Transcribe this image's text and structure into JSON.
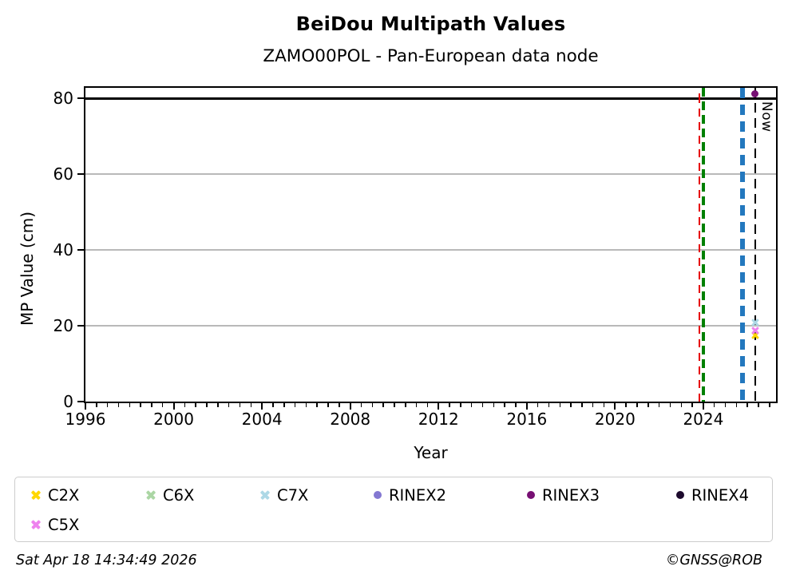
{
  "header": {
    "title": "BeiDou Multipath Values",
    "subtitle": "ZAMO00POL - Pan-European data node"
  },
  "footer": {
    "timestamp": "Sat Apr 18 14:34:49 2026",
    "copyright": "©GNSS@ROB"
  },
  "chart_data": {
    "type": "scatter",
    "title": "BeiDou Multipath Values",
    "subtitle": "ZAMO00POL - Pan-European data node",
    "xlabel": "Year",
    "ylabel": "MP Value (cm)",
    "xlim": [
      1996,
      2027.3
    ],
    "ylim": [
      0,
      82.7
    ],
    "xticks_major": [
      1996,
      2000,
      2004,
      2008,
      2012,
      2016,
      2020,
      2024
    ],
    "xtick_minor_step": 0.5,
    "yticks": [
      0,
      20,
      40,
      60,
      80
    ],
    "gridlines_y": [
      20,
      40,
      60
    ],
    "grid": "horizontal-light",
    "legend_position": "below",
    "hlines": [
      {
        "y": 80,
        "color": "#000000",
        "style": "solid",
        "width": 3
      }
    ],
    "vlines": [
      {
        "name": "red-event-line",
        "x": 2023.82,
        "color": "#e60000",
        "style": "dashed",
        "width": 2.5,
        "dash": [
          10,
          7
        ],
        "phase": 9,
        "label": ""
      },
      {
        "name": "green-event-line",
        "x": 2023.99,
        "color": "#008000",
        "style": "dashed",
        "width": 4,
        "dash": [
          11,
          6
        ],
        "phase": 0,
        "label": ""
      },
      {
        "name": "blue-event-line",
        "x": 2025.78,
        "color": "#2378be",
        "style": "dashed",
        "width": 6,
        "dash": [
          13,
          8
        ],
        "phase": 0,
        "label": ""
      },
      {
        "name": "now-line",
        "x": 2026.36,
        "color": "#000000",
        "style": "dashed",
        "width": 2.5,
        "dash": [
          12,
          7
        ],
        "phase": 0,
        "label": "Now"
      }
    ],
    "now_label": "Now",
    "series": [
      {
        "name": "C2X",
        "marker": "x",
        "color": "#ffd700",
        "points": [
          {
            "x": 2026.35,
            "y": 17.5
          }
        ]
      },
      {
        "name": "C6X",
        "marker": "x",
        "color": "#abd6a4",
        "points": []
      },
      {
        "name": "C7X",
        "marker": "x",
        "color": "#add8e6",
        "points": [
          {
            "x": 2026.35,
            "y": 20.9
          }
        ]
      },
      {
        "name": "RINEX2",
        "marker": "circle",
        "color": "#8478d2",
        "points": []
      },
      {
        "name": "RINEX3",
        "marker": "circle",
        "color": "#770f73",
        "points": [
          {
            "x": 2026.33,
            "y": 81.2
          }
        ]
      },
      {
        "name": "RINEX4",
        "marker": "circle",
        "color": "#1d0a2d",
        "points": []
      },
      {
        "name": "C5X",
        "marker": "x",
        "color": "#ee82ee",
        "points": [
          {
            "x": 2026.35,
            "y": 18.8
          }
        ]
      }
    ]
  }
}
